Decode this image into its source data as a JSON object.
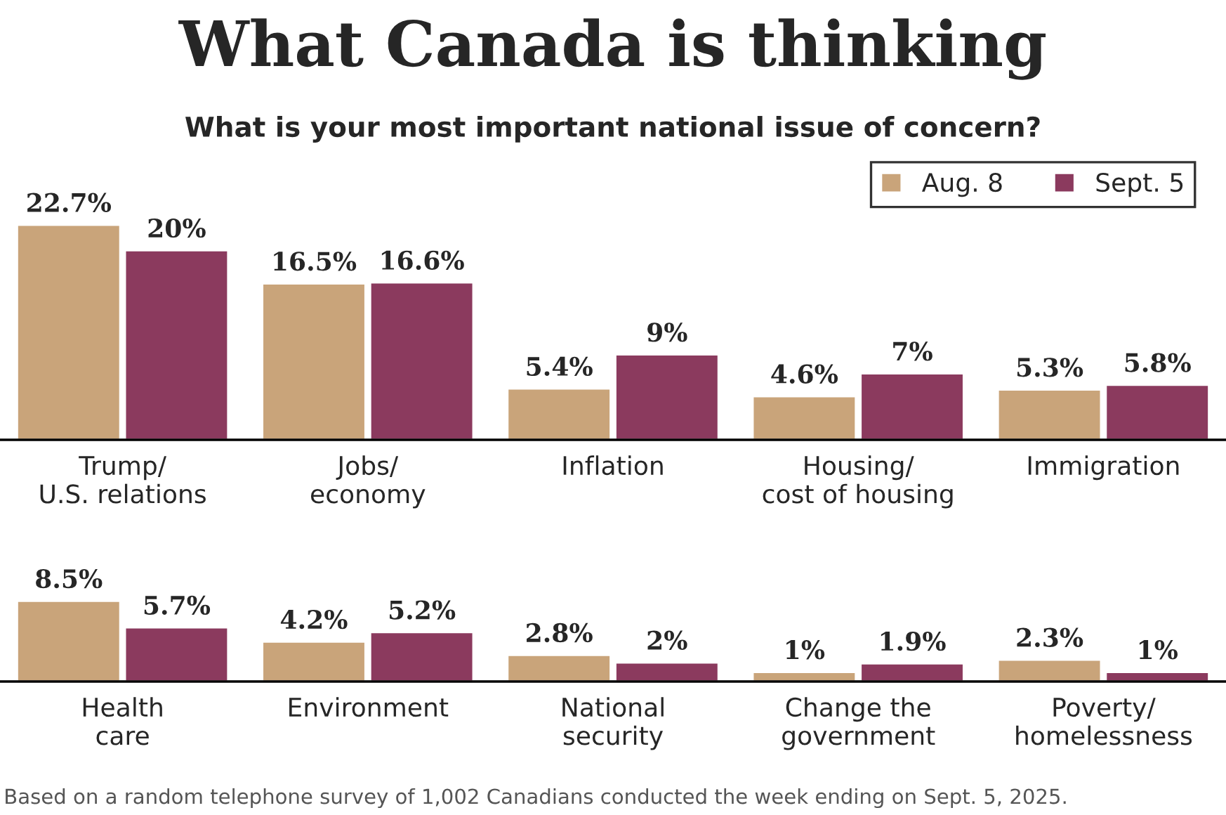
{
  "chart_data": [
    {
      "type": "bar",
      "title": "What Canada is thinking",
      "subtitle": "What is your most important national issue of concern?",
      "categories": [
        "Trump/\nU.S. relations",
        "Jobs/\neconomy",
        "Inflation",
        "Housing/\ncost of housing",
        "Immigration"
      ],
      "legend": "top right",
      "series": [
        {
          "name": "Aug. 8",
          "color": "#c9a47a",
          "values": [
            22.7,
            16.5,
            5.4,
            4.6,
            5.3
          ],
          "value_labels": [
            "22.7%",
            "16.5%",
            "5.4%",
            "4.6%",
            "5.3%"
          ]
        },
        {
          "name": "Sept. 5",
          "color": "#8b3a5e",
          "values": [
            20,
            16.6,
            9,
            7,
            5.8
          ],
          "value_labels": [
            "20%",
            "16.6%",
            "9%",
            "7%",
            "5.8%"
          ]
        }
      ]
    },
    {
      "type": "bar",
      "categories": [
        "Health\ncare",
        "Environment",
        "National\nsecurity",
        "Change the\ngovernment",
        "Poverty/\nhomelessness"
      ],
      "series": [
        {
          "color": "#c9a47a",
          "values": [
            8.5,
            4.2,
            2.8,
            1,
            2.3
          ],
          "value_labels": [
            "8.5%",
            "4.2%",
            "2.8%",
            "1%",
            "2.3%"
          ]
        },
        {
          "color": "#8b3a5e",
          "values": [
            5.7,
            5.2,
            2,
            1.9,
            1
          ],
          "value_labels": [
            "5.7%",
            "5.2%",
            "2%",
            "1.9%",
            "1%"
          ]
        }
      ],
      "annotations": [
        "Based on a random telephone survey of 1,002 Canadians conducted the week ending on Sept. 5, 2025."
      ]
    }
  ]
}
